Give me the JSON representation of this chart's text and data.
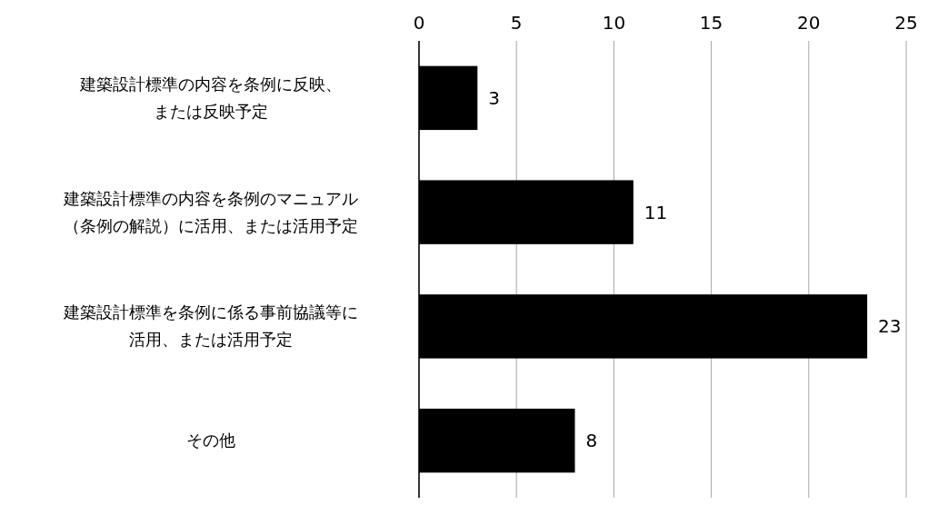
{
  "chart_data": {
    "type": "bar",
    "orientation": "horizontal",
    "categories": [
      "建築設計標準の内容を条例に反映、または反映予定",
      "建築設計標準の内容を条例のマニュアル（条例の解説）に活用、または活用予定",
      "建築設計標準を条例に係る事前協議等に活用、または活用予定",
      "その他"
    ],
    "values": [
      3,
      11,
      23,
      8
    ],
    "color": "#000000",
    "xlim": [
      0,
      25
    ],
    "xticks": [
      0,
      5,
      10,
      15,
      20,
      25
    ],
    "grid": "x",
    "data_labels": true
  }
}
